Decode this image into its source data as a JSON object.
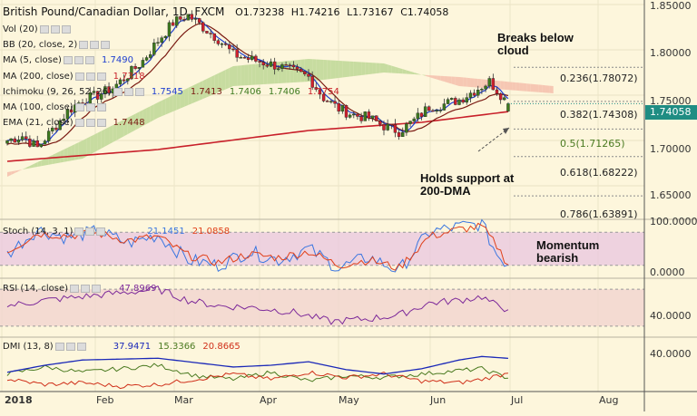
{
  "header": {
    "symbol": "British Pound/Canadian Dollar, 1D, FXCM",
    "open": "O1.73238",
    "high": "H1.74216",
    "low": "L1.73167",
    "close": "C1.74058"
  },
  "indicators": {
    "vol": "Vol (20)",
    "bb": "BB (20, close, 2)",
    "ma5": "MA (5, close)",
    "ma5_val": "1.7490",
    "ma200": "MA (200, close)",
    "ma200_val": "1.7318",
    "ichimoku": "Ichimoku (9, 26, 52, 26)",
    "ichimoku_vals": [
      "1.7545",
      "1.7413",
      "1.7406",
      "1.7406",
      "1.7754"
    ],
    "ma100": "MA (100, close)",
    "ema21": "EMA (21, close)",
    "ema21_val": "1.7448",
    "stoch": "Stoch (14, 3, 1)",
    "stoch_vals": [
      "21.1451",
      "21.0858"
    ],
    "rsi": "RSI (14, close)",
    "rsi_val": "47.8969",
    "dmi": "DMI (13, 8)",
    "dmi_vals": [
      "37.9471",
      "15.3366",
      "20.8665"
    ]
  },
  "annotations": {
    "breaks": "Breaks below\ncloud",
    "holds": "Holds support at\n200-DMA",
    "momentum": "Momentum\nbearish"
  },
  "fib_levels": [
    {
      "label": "0.236(1.78072)",
      "value": 1.78072
    },
    {
      "label": "0.382(1.74308)",
      "value": 1.74308
    },
    {
      "label": "0.5(1.71265)",
      "value": 1.71265
    },
    {
      "label": "0.618(1.68222)",
      "value": 1.68222
    },
    {
      "label": "0.786(1.63891)",
      "value": 1.63891
    }
  ],
  "price_tag": "1.74058",
  "colors": {
    "background": "#fdf6dc",
    "bull": "#3d7a1e",
    "bear": "#d0202e",
    "ma5": "#1f3fd0",
    "ma200": "#c8202a",
    "ema21": "#7a1a12",
    "cloud_bull": "#c7dca0",
    "cloud_bear": "#f6c7b3",
    "stoch_k": "#3a76e0",
    "stoch_d": "#e0401a",
    "rsi": "#7d2a9a",
    "dmi_adx": "#1a28b8",
    "dmi_plus": "#4a7a20",
    "dmi_minus": "#d0301a",
    "tag": "#1f8d83"
  },
  "chart_data": [
    {
      "type": "candlestick",
      "title": "British Pound/Canadian Dollar, 1D, FXCM",
      "ylim": [
        1.615,
        1.855
      ],
      "y_ticks": [
        "1.85000",
        "1.80000",
        "1.75000",
        "1.70000",
        "1.65000"
      ],
      "x_ticks": [
        "2018",
        "Feb",
        "Mar",
        "Apr",
        "May",
        "Jun",
        "Jul",
        "Aug"
      ],
      "anchors_close": [
        [
          0,
          1.7
        ],
        [
          4,
          1.705
        ],
        [
          8,
          1.692
        ],
        [
          12,
          1.712
        ],
        [
          16,
          1.732
        ],
        [
          20,
          1.745
        ],
        [
          24,
          1.75
        ],
        [
          28,
          1.758
        ],
        [
          32,
          1.772
        ],
        [
          36,
          1.788
        ],
        [
          40,
          1.81
        ],
        [
          44,
          1.83
        ],
        [
          48,
          1.838
        ],
        [
          52,
          1.825
        ],
        [
          56,
          1.812
        ],
        [
          60,
          1.795
        ],
        [
          64,
          1.79
        ],
        [
          68,
          1.786
        ],
        [
          72,
          1.782
        ],
        [
          76,
          1.776
        ],
        [
          80,
          1.77
        ],
        [
          84,
          1.747
        ],
        [
          88,
          1.735
        ],
        [
          92,
          1.728
        ],
        [
          96,
          1.725
        ],
        [
          100,
          1.716
        ],
        [
          104,
          1.71
        ],
        [
          108,
          1.722
        ],
        [
          112,
          1.737
        ],
        [
          116,
          1.74
        ],
        [
          120,
          1.745
        ],
        [
          124,
          1.755
        ],
        [
          128,
          1.765
        ],
        [
          131,
          1.751
        ],
        [
          133,
          1.7406
        ]
      ],
      "ma200_anchors": [
        [
          0,
          1.677
        ],
        [
          40,
          1.69
        ],
        [
          80,
          1.711
        ],
        [
          110,
          1.72
        ],
        [
          133,
          1.7318
        ]
      ],
      "ichimoku_senkou_a": [
        [
          0,
          1.66
        ],
        [
          20,
          1.7
        ],
        [
          40,
          1.742
        ],
        [
          60,
          1.782
        ],
        [
          80,
          1.79
        ],
        [
          100,
          1.785
        ],
        [
          120,
          1.76
        ],
        [
          145,
          1.752
        ]
      ],
      "ichimoku_senkou_b": [
        [
          0,
          1.665
        ],
        [
          20,
          1.68
        ],
        [
          40,
          1.725
        ],
        [
          60,
          1.76
        ],
        [
          80,
          1.765
        ],
        [
          100,
          1.775
        ],
        [
          120,
          1.77
        ],
        [
          145,
          1.76
        ]
      ]
    },
    {
      "type": "line",
      "title": "Stoch (14, 3, 1)",
      "ylim": [
        0,
        100
      ],
      "y_ticks": [
        "100.0000",
        "0.0000"
      ],
      "k_anchors": [
        [
          0,
          40
        ],
        [
          8,
          85
        ],
        [
          16,
          70
        ],
        [
          24,
          82
        ],
        [
          32,
          60
        ],
        [
          40,
          75
        ],
        [
          48,
          30
        ],
        [
          56,
          20
        ],
        [
          64,
          45
        ],
        [
          72,
          30
        ],
        [
          80,
          50
        ],
        [
          88,
          15
        ],
        [
          96,
          35
        ],
        [
          104,
          10
        ],
        [
          112,
          80
        ],
        [
          120,
          90
        ],
        [
          126,
          95
        ],
        [
          130,
          40
        ],
        [
          133,
          21
        ]
      ],
      "d_anchors": [
        [
          0,
          45
        ],
        [
          8,
          78
        ],
        [
          16,
          74
        ],
        [
          24,
          78
        ],
        [
          32,
          65
        ],
        [
          40,
          72
        ],
        [
          48,
          38
        ],
        [
          56,
          25
        ],
        [
          64,
          40
        ],
        [
          72,
          34
        ],
        [
          80,
          45
        ],
        [
          88,
          20
        ],
        [
          96,
          30
        ],
        [
          104,
          15
        ],
        [
          112,
          72
        ],
        [
          120,
          85
        ],
        [
          126,
          90
        ],
        [
          130,
          55
        ],
        [
          133,
          21
        ]
      ]
    },
    {
      "type": "line",
      "title": "RSI (14, close)",
      "ylim": [
        20,
        80
      ],
      "y_ticks": [
        "40.0000"
      ],
      "anchors": [
        [
          0,
          52
        ],
        [
          10,
          58
        ],
        [
          20,
          62
        ],
        [
          30,
          66
        ],
        [
          40,
          70
        ],
        [
          48,
          58
        ],
        [
          56,
          52
        ],
        [
          66,
          50
        ],
        [
          76,
          45
        ],
        [
          86,
          35
        ],
        [
          96,
          38
        ],
        [
          104,
          42
        ],
        [
          112,
          55
        ],
        [
          120,
          58
        ],
        [
          126,
          62
        ],
        [
          130,
          52
        ],
        [
          133,
          47.9
        ]
      ]
    },
    {
      "type": "line",
      "title": "DMI (13, 8)",
      "ylim": [
        0,
        60
      ],
      "y_ticks": [
        "40.0000"
      ],
      "adx_anchors": [
        [
          0,
          22
        ],
        [
          10,
          30
        ],
        [
          20,
          36
        ],
        [
          30,
          37
        ],
        [
          40,
          38
        ],
        [
          50,
          33
        ],
        [
          60,
          28
        ],
        [
          70,
          30
        ],
        [
          80,
          34
        ],
        [
          90,
          25
        ],
        [
          100,
          20
        ],
        [
          110,
          26
        ],
        [
          120,
          36
        ],
        [
          126,
          40
        ],
        [
          133,
          37.9
        ]
      ],
      "plus_anchors": [
        [
          0,
          20
        ],
        [
          10,
          28
        ],
        [
          20,
          22
        ],
        [
          30,
          26
        ],
        [
          40,
          30
        ],
        [
          50,
          18
        ],
        [
          60,
          14
        ],
        [
          70,
          22
        ],
        [
          80,
          12
        ],
        [
          90,
          18
        ],
        [
          100,
          16
        ],
        [
          110,
          20
        ],
        [
          120,
          24
        ],
        [
          126,
          26
        ],
        [
          133,
          15.3
        ]
      ],
      "minus_anchors": [
        [
          0,
          14
        ],
        [
          10,
          8
        ],
        [
          20,
          10
        ],
        [
          30,
          6
        ],
        [
          40,
          8
        ],
        [
          50,
          14
        ],
        [
          60,
          20
        ],
        [
          70,
          14
        ],
        [
          80,
          22
        ],
        [
          90,
          16
        ],
        [
          100,
          20
        ],
        [
          110,
          12
        ],
        [
          120,
          10
        ],
        [
          126,
          14
        ],
        [
          133,
          20.9
        ]
      ]
    }
  ]
}
